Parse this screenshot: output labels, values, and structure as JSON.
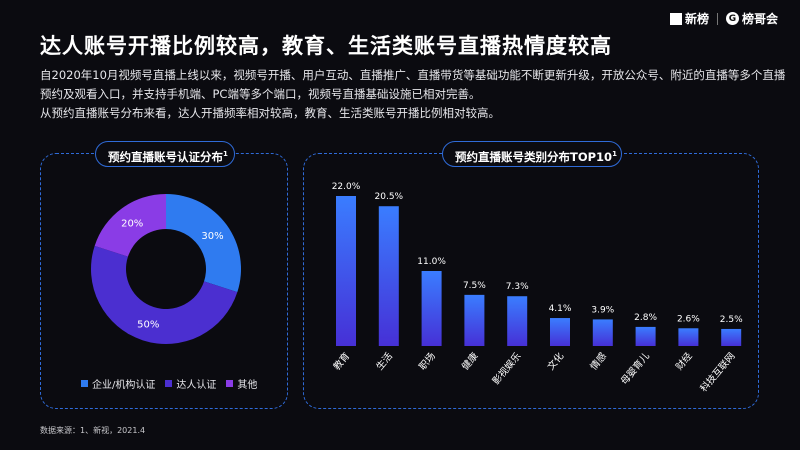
{
  "header": {
    "title": "达人账号开播比例较高，教育、生活类账号直播热情度较高",
    "logo_left": "新榜",
    "logo_right": "榜哥会"
  },
  "intro": {
    "lines": [
      "自2020年10月视频号直播上线以来，视频号开播、用户互动、直播推广、直播带货等基础功能不断更新升级，开放公众号、附近的直播等多个直播",
      "预约及观看入口，并支持手机端、PC端等多个端口，视频号直播基础设施已相对完善。",
      "从预约直播账号分布来看，达人开播频率相对较高，教育、生活类账号开播比例相对较高。"
    ]
  },
  "panels": {
    "left_title": "预约直播账号认证分布",
    "left_sup": "1",
    "right_title": "预约直播账号类别分布TOP10",
    "right_sup": "1"
  },
  "colors": {
    "accent": "#2f6bd8",
    "enterprise": "#2f7bf0",
    "talent": "#4b2fd0",
    "other": "#8a3ce6",
    "bar_top": "#3a7dff",
    "bar_bottom": "#4630d6"
  },
  "chart_data": [
    {
      "type": "pie",
      "title": "预约直播账号认证分布",
      "categories": [
        "企业/机构认证",
        "达人认证",
        "其他"
      ],
      "values": [
        30,
        50,
        20
      ],
      "labels": [
        "30%",
        "50%",
        "20%"
      ],
      "legend": "bottom"
    },
    {
      "type": "bar",
      "title": "预约直播账号类别分布TOP10",
      "categories": [
        "教育",
        "生活",
        "职场",
        "健康",
        "影视娱乐",
        "文化",
        "情感",
        "母婴育儿",
        "财经",
        "科技互联网"
      ],
      "values": [
        22.0,
        20.5,
        11.0,
        7.5,
        7.3,
        4.1,
        3.9,
        2.8,
        2.6,
        2.5
      ],
      "labels": [
        "22.0%",
        "20.5%",
        "11.0%",
        "7.5%",
        "7.3%",
        "4.1%",
        "3.9%",
        "2.8%",
        "2.6%",
        "2.5%"
      ],
      "ylim": [
        0,
        22
      ]
    }
  ],
  "footnote": "数据来源：1、新视，2021.4"
}
